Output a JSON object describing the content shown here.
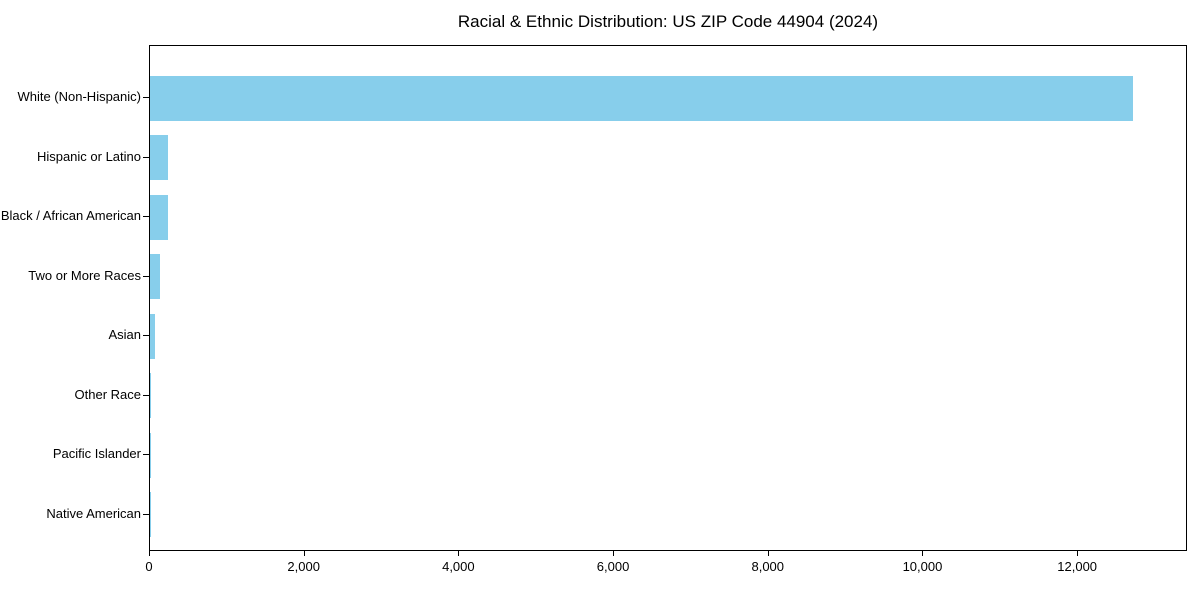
{
  "chart_data": {
    "type": "bar",
    "orientation": "horizontal",
    "title": "Racial & Ethnic Distribution: US ZIP Code 44904 (2024)",
    "categories": [
      "White (Non-Hispanic)",
      "Hispanic or Latino",
      "Black / African American",
      "Two or More Races",
      "Asian",
      "Other Race",
      "Pacific Islander",
      "Native American"
    ],
    "values": [
      12735,
      230,
      237,
      130,
      65,
      14,
      8,
      2
    ],
    "bar_color": "#87CEEB",
    "xlabel": "",
    "ylabel": "",
    "xlim": [
      0,
      13420
    ],
    "x_ticks": [
      0,
      2000,
      4000,
      6000,
      8000,
      10000,
      12000
    ],
    "x_tick_labels": [
      "0",
      "2,000",
      "4,000",
      "6,000",
      "8,000",
      "10,000",
      "12,000"
    ],
    "grid": false,
    "legend_position": "none",
    "background_color": "#ffffff"
  }
}
